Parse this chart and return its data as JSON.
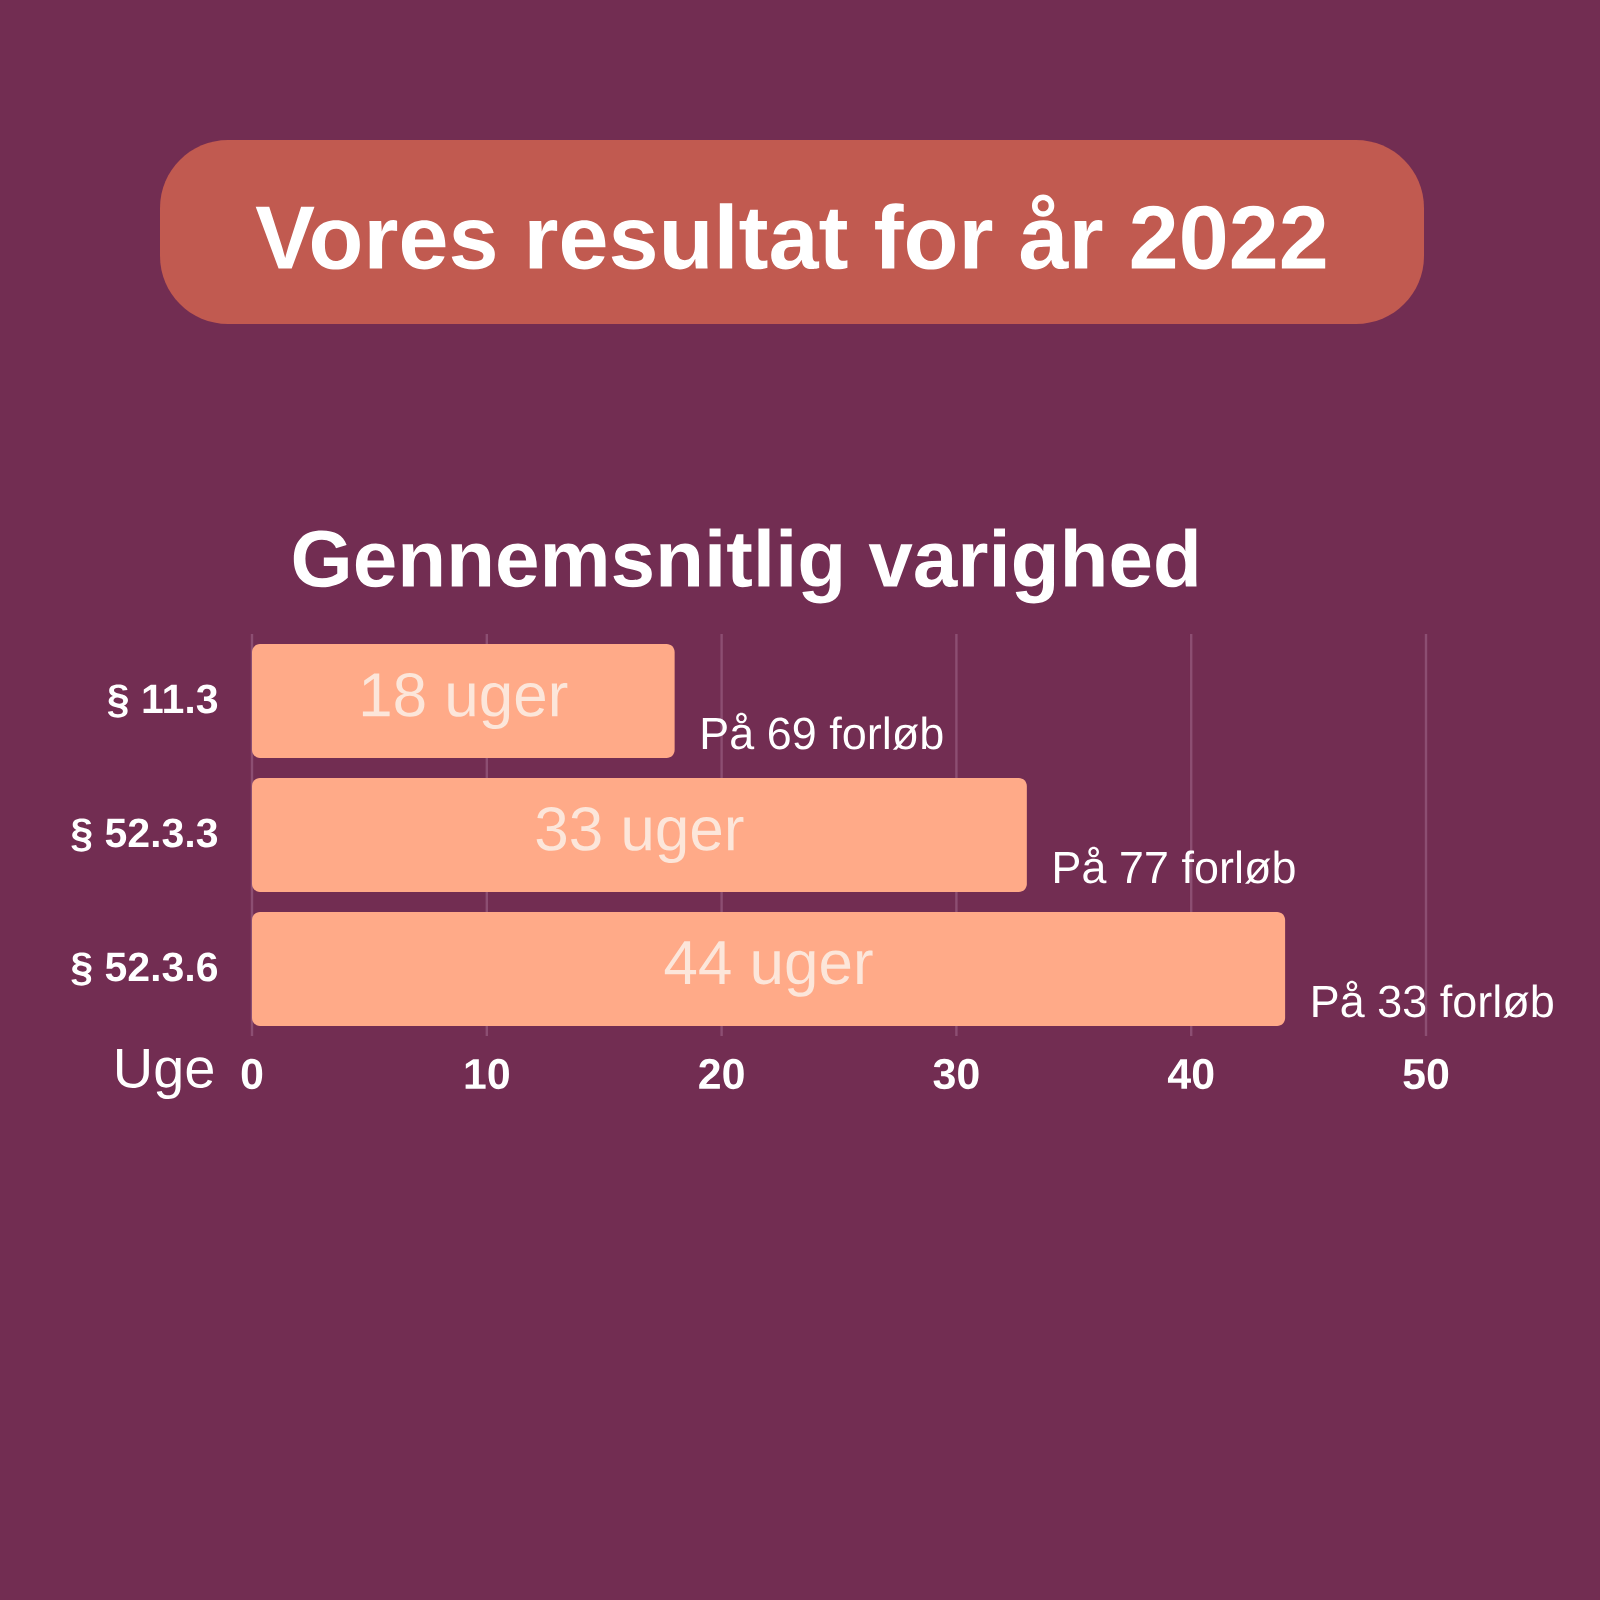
{
  "chart_data": {
    "type": "bar",
    "orientation": "horizontal",
    "title": "Vores resultat for år 2022",
    "subtitle": "Gennemsnitlig varighed",
    "xlabel": "Uge",
    "categories": [
      "§ 11.3",
      "§ 52.3.3",
      "§ 52.3.6"
    ],
    "values": [
      18,
      33,
      44
    ],
    "value_labels": [
      "18 uger",
      "33 uger",
      "44 uger"
    ],
    "color": "#ffaa88",
    "xlim": [
      0,
      50
    ],
    "xticks": [
      0,
      10,
      20,
      30,
      40,
      50
    ],
    "grid": "x",
    "annotations": [
      "På 69 forløb",
      "På 77 forløb",
      "På 33 forløb"
    ]
  }
}
